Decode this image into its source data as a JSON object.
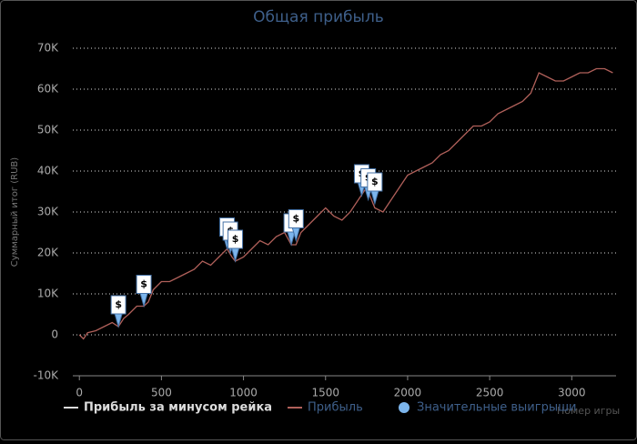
{
  "chart_data": {
    "type": "line",
    "title": "Общая прибыль",
    "x_label": "Номер игры",
    "y_label": "Суммарный итог (RUB)",
    "xlim": [
      -40,
      3270
    ],
    "xticks": [
      0,
      500,
      1000,
      1500,
      2000,
      2500,
      3000
    ],
    "ylim": [
      -10000,
      70000
    ],
    "yticks": [
      {
        "value": -10000,
        "label": "-10K"
      },
      {
        "value": 0,
        "label": "0"
      },
      {
        "value": 10000,
        "label": "10K"
      },
      {
        "value": 20000,
        "label": "20K"
      },
      {
        "value": 30000,
        "label": "30K"
      },
      {
        "value": 40000,
        "label": "40K"
      },
      {
        "value": 50000,
        "label": "50K"
      },
      {
        "value": 60000,
        "label": "60K"
      },
      {
        "value": 70000,
        "label": "70K"
      }
    ],
    "grid": true,
    "x": [
      0,
      25,
      50,
      100,
      150,
      200,
      238,
      270,
      300,
      350,
      393,
      420,
      450,
      500,
      550,
      600,
      650,
      700,
      750,
      800,
      850,
      900,
      930,
      950,
      1000,
      1050,
      1100,
      1150,
      1200,
      1250,
      1291,
      1320,
      1350,
      1400,
      1450,
      1500,
      1550,
      1600,
      1650,
      1700,
      1750,
      1780,
      1800,
      1850,
      1900,
      1950,
      2000,
      2050,
      2100,
      2150,
      2200,
      2250,
      2300,
      2350,
      2400,
      2450,
      2500,
      2550,
      2600,
      2650,
      2700,
      2750,
      2800,
      2850,
      2900,
      2950,
      3000,
      3050,
      3100,
      3150,
      3200,
      3250
    ],
    "series": [
      {
        "name": "Прибыль за минусом рейка",
        "color": "#dddddd"
      },
      {
        "name": "Прибыль",
        "color": "#b0605a",
        "values": [
          0,
          -1000,
          500,
          1000,
          2000,
          3000,
          2000,
          4000,
          5000,
          7000,
          7000,
          8000,
          11000,
          13000,
          13000,
          14000,
          15000,
          16000,
          18000,
          17000,
          19000,
          21000,
          19000,
          18000,
          19000,
          21000,
          23000,
          22000,
          24000,
          25000,
          22000,
          22000,
          25000,
          27000,
          29000,
          31000,
          29000,
          28000,
          30000,
          33000,
          36000,
          33000,
          31000,
          30000,
          33000,
          36000,
          39000,
          40000,
          41000,
          42000,
          44000,
          45000,
          47000,
          49000,
          51000,
          51000,
          52000,
          54000,
          55000,
          56000,
          57000,
          59000,
          64000,
          63000,
          62000,
          62000,
          63000,
          64000,
          64000,
          65000,
          65000,
          64000
        ]
      },
      {
        "name": "Значительные выигрыши",
        "color": "#7cb5ec",
        "marker_text": "$",
        "x": [
          238,
          393,
          900,
          920,
          950,
          1291,
          1320,
          1720,
          1760,
          1800
        ],
        "values": [
          2000,
          7000,
          21000,
          20000,
          18000,
          22000,
          23000,
          34000,
          33000,
          32000
        ]
      }
    ]
  }
}
